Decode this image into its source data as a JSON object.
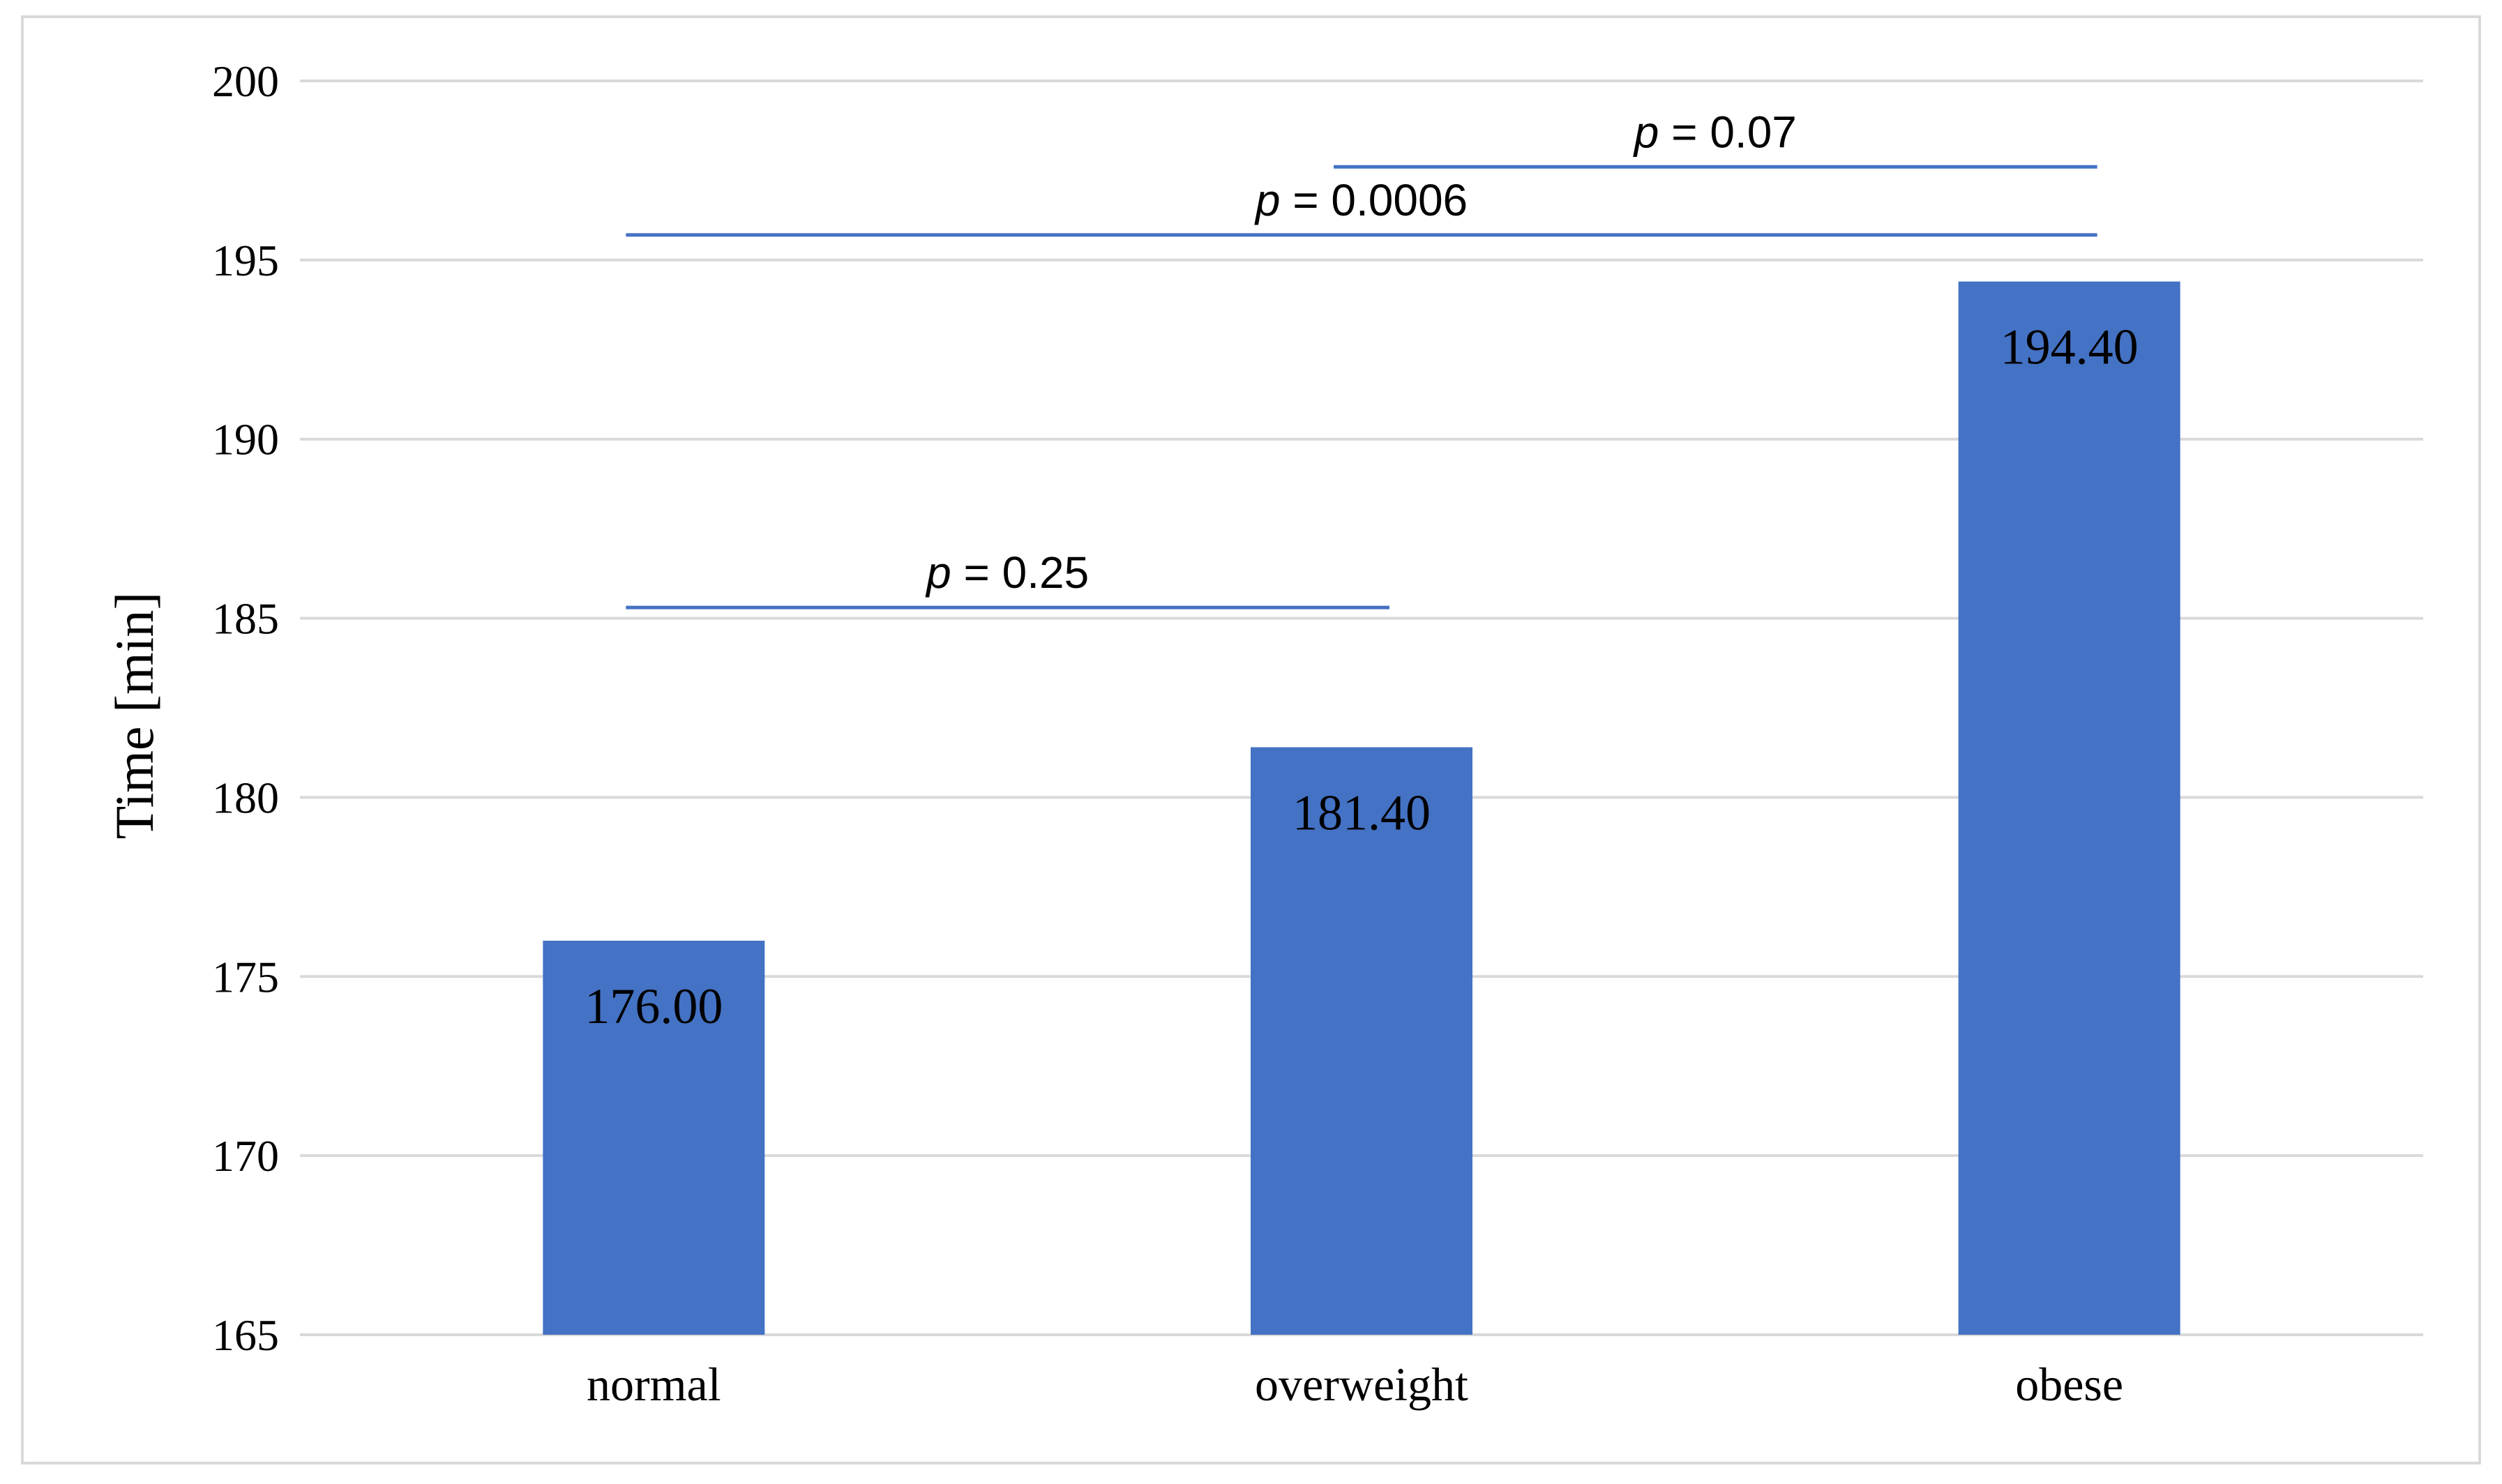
{
  "chart_data": {
    "type": "bar",
    "title": "",
    "xlabel": "",
    "ylabel": "Time [min]",
    "ylim": [
      165,
      200
    ],
    "yticks": [
      165,
      170,
      175,
      180,
      185,
      190,
      195,
      200
    ],
    "ytick_labels": [
      "165",
      "170",
      "175",
      "180",
      "185",
      "190",
      "195",
      "200"
    ],
    "grid": true,
    "legend": "none",
    "categories": [
      "normal",
      "overweight",
      "obese"
    ],
    "values": [
      176.0,
      181.4,
      194.4
    ],
    "value_labels": [
      "176.00",
      "181.40",
      "194.40"
    ],
    "bar_color": "#4472c4",
    "gridline_color": "#d9d9d9",
    "significance": [
      {
        "from": "normal",
        "to": "overweight",
        "y": 185.3,
        "label_prefix": "p",
        "label_rest": " = 0.25"
      },
      {
        "from": "normal",
        "to": "obese",
        "y": 195.7,
        "label_prefix": "p",
        "label_rest": " = 0.0006"
      },
      {
        "from": "overweight",
        "to": "obese",
        "y": 197.6,
        "label_prefix": "p",
        "label_rest": " = 0.07"
      }
    ]
  }
}
